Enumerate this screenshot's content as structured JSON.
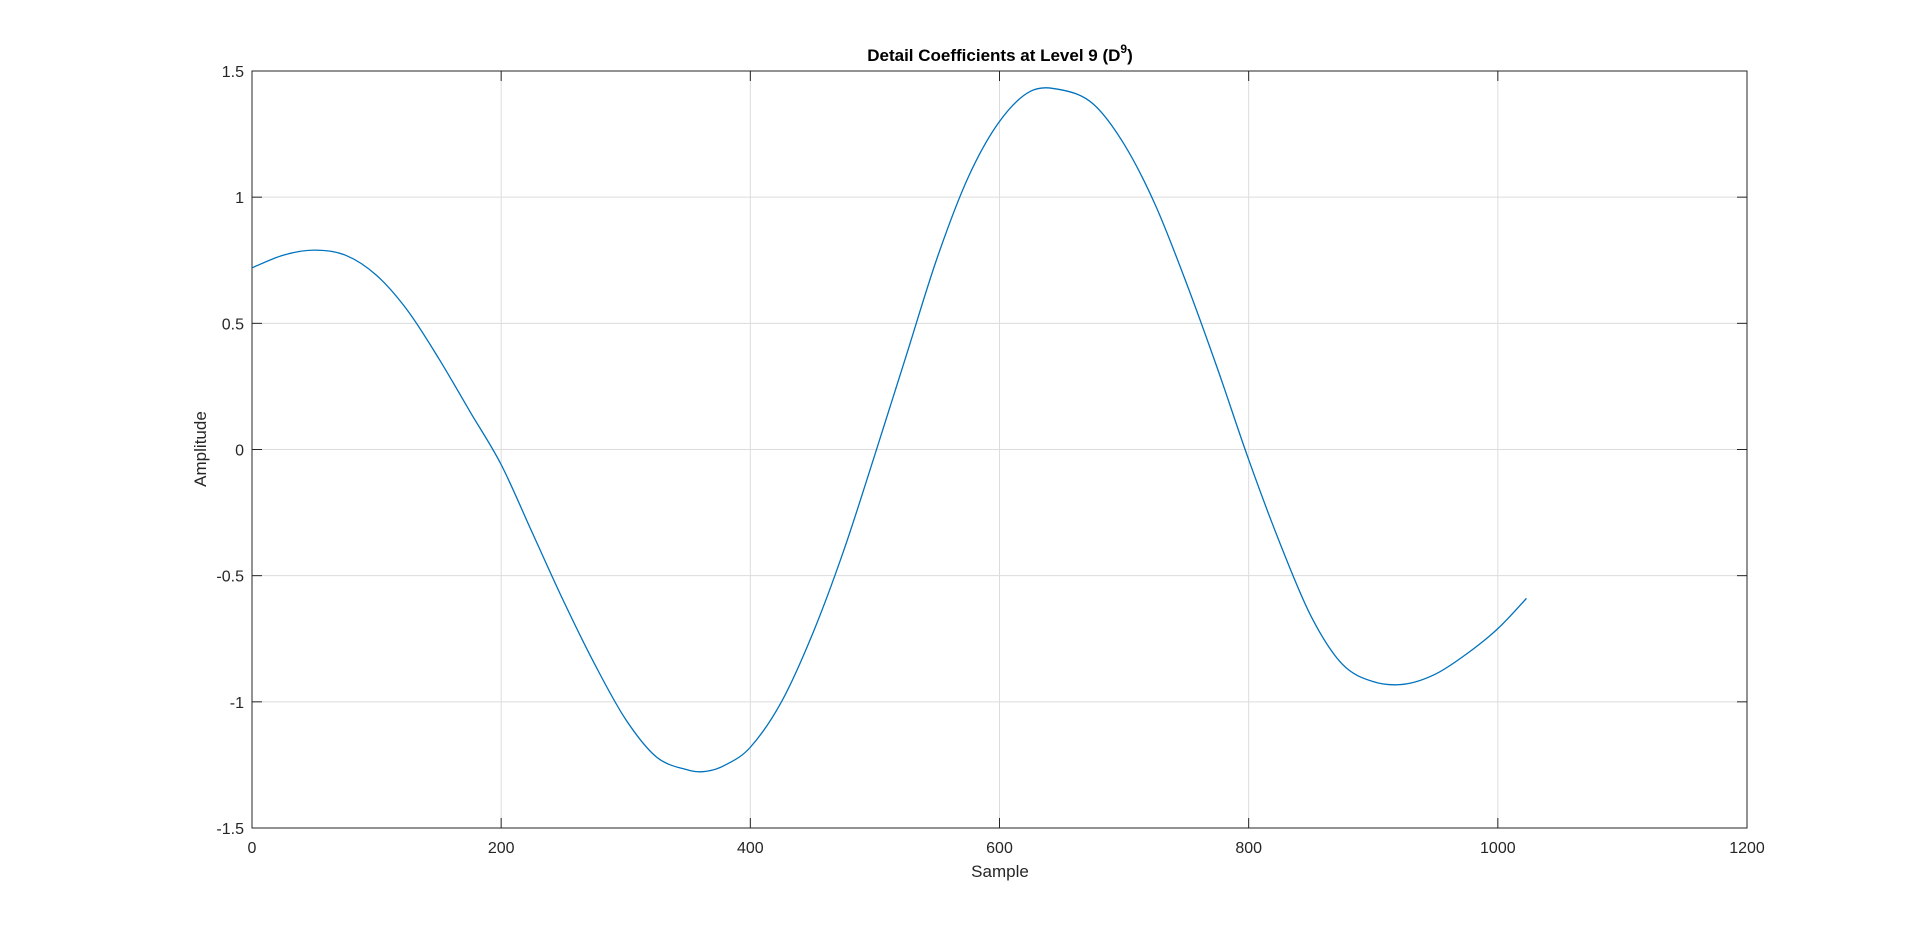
{
  "chart_data": {
    "type": "line",
    "title": {
      "main": "Detail Coefficients at Level 9 (D",
      "superscript": "9",
      "tail": ")"
    },
    "xlabel": "Sample",
    "ylabel": "Amplitude",
    "xlim": [
      0,
      1200
    ],
    "ylim": [
      -1.5,
      1.5
    ],
    "xticks": [
      0,
      200,
      400,
      600,
      800,
      1000,
      1200
    ],
    "yticks": [
      -1.5,
      -1,
      -0.5,
      0,
      0.5,
      1,
      1.5
    ],
    "xtick_labels": [
      "0",
      "200",
      "400",
      "600",
      "800",
      "1000",
      "1200"
    ],
    "ytick_labels": [
      "-1.5",
      "-1",
      "-0.5",
      "0",
      "0.5",
      "1",
      "1.5"
    ],
    "grid": true,
    "series": [
      {
        "color": "#0072BD",
        "x": [
          0,
          25,
          50,
          75,
          100,
          125,
          150,
          175,
          200,
          225,
          250,
          275,
          300,
          325,
          350,
          365,
          380,
          400,
          425,
          450,
          475,
          500,
          525,
          550,
          575,
          600,
          625,
          650,
          675,
          700,
          725,
          750,
          775,
          800,
          825,
          850,
          875,
          900,
          925,
          950,
          975,
          1000,
          1023
        ],
        "y": [
          0.72,
          0.77,
          0.79,
          0.77,
          0.69,
          0.55,
          0.36,
          0.15,
          -0.06,
          -0.33,
          -0.6,
          -0.85,
          -1.07,
          -1.22,
          -1.27,
          -1.275,
          -1.25,
          -1.18,
          -1.0,
          -0.73,
          -0.4,
          -0.02,
          0.37,
          0.76,
          1.08,
          1.3,
          1.42,
          1.425,
          1.37,
          1.21,
          0.97,
          0.66,
          0.32,
          -0.04,
          -0.37,
          -0.66,
          -0.85,
          -0.92,
          -0.93,
          -0.89,
          -0.81,
          -0.71,
          -0.59
        ]
      }
    ]
  }
}
